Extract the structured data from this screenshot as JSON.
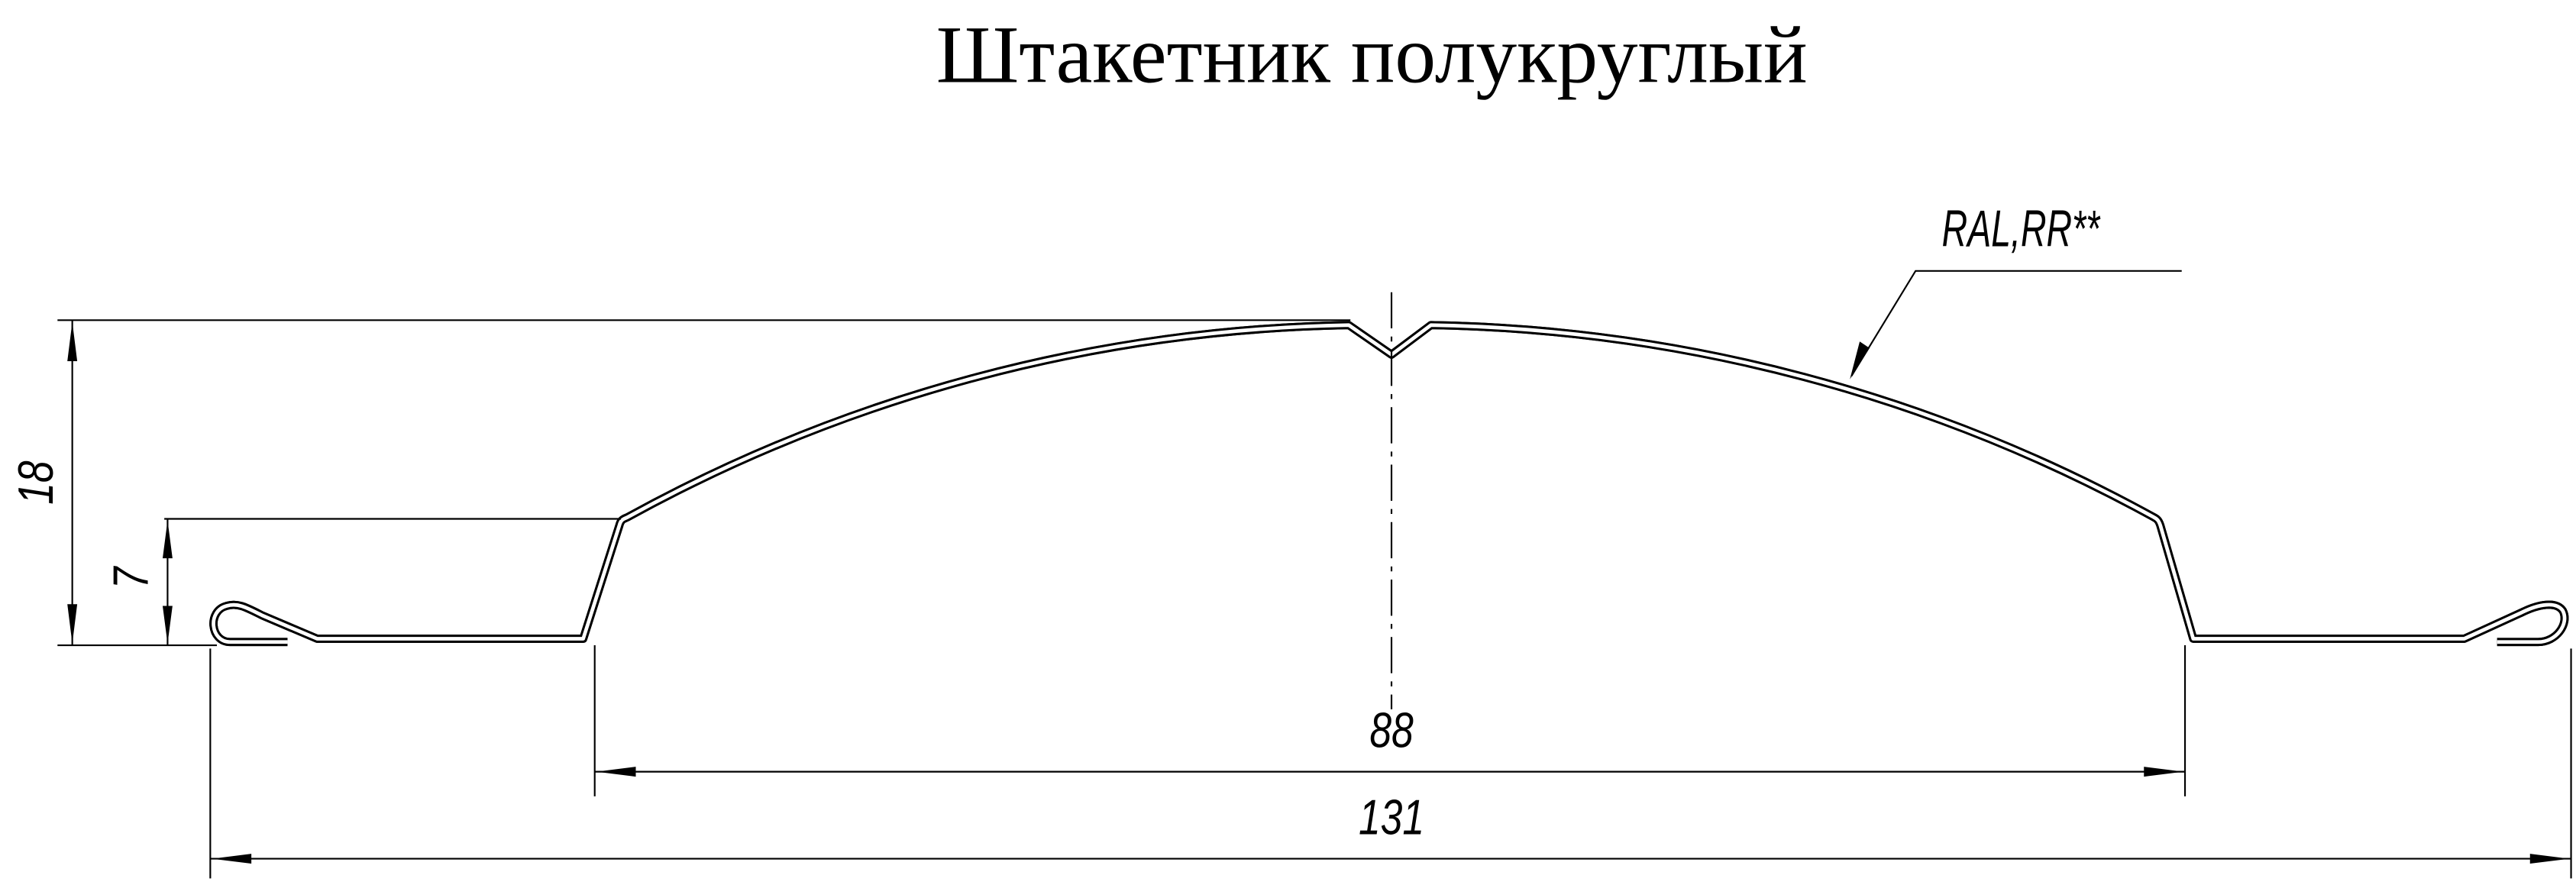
{
  "title": "Штакетник полукруглый",
  "dimensions": {
    "total_height": "18",
    "side_height": "7",
    "middle_width": "88",
    "total_width": "131"
  },
  "annotation": {
    "coating": "RAL,RR**"
  },
  "colors": {
    "line": "#000000",
    "background": "#ffffff"
  }
}
